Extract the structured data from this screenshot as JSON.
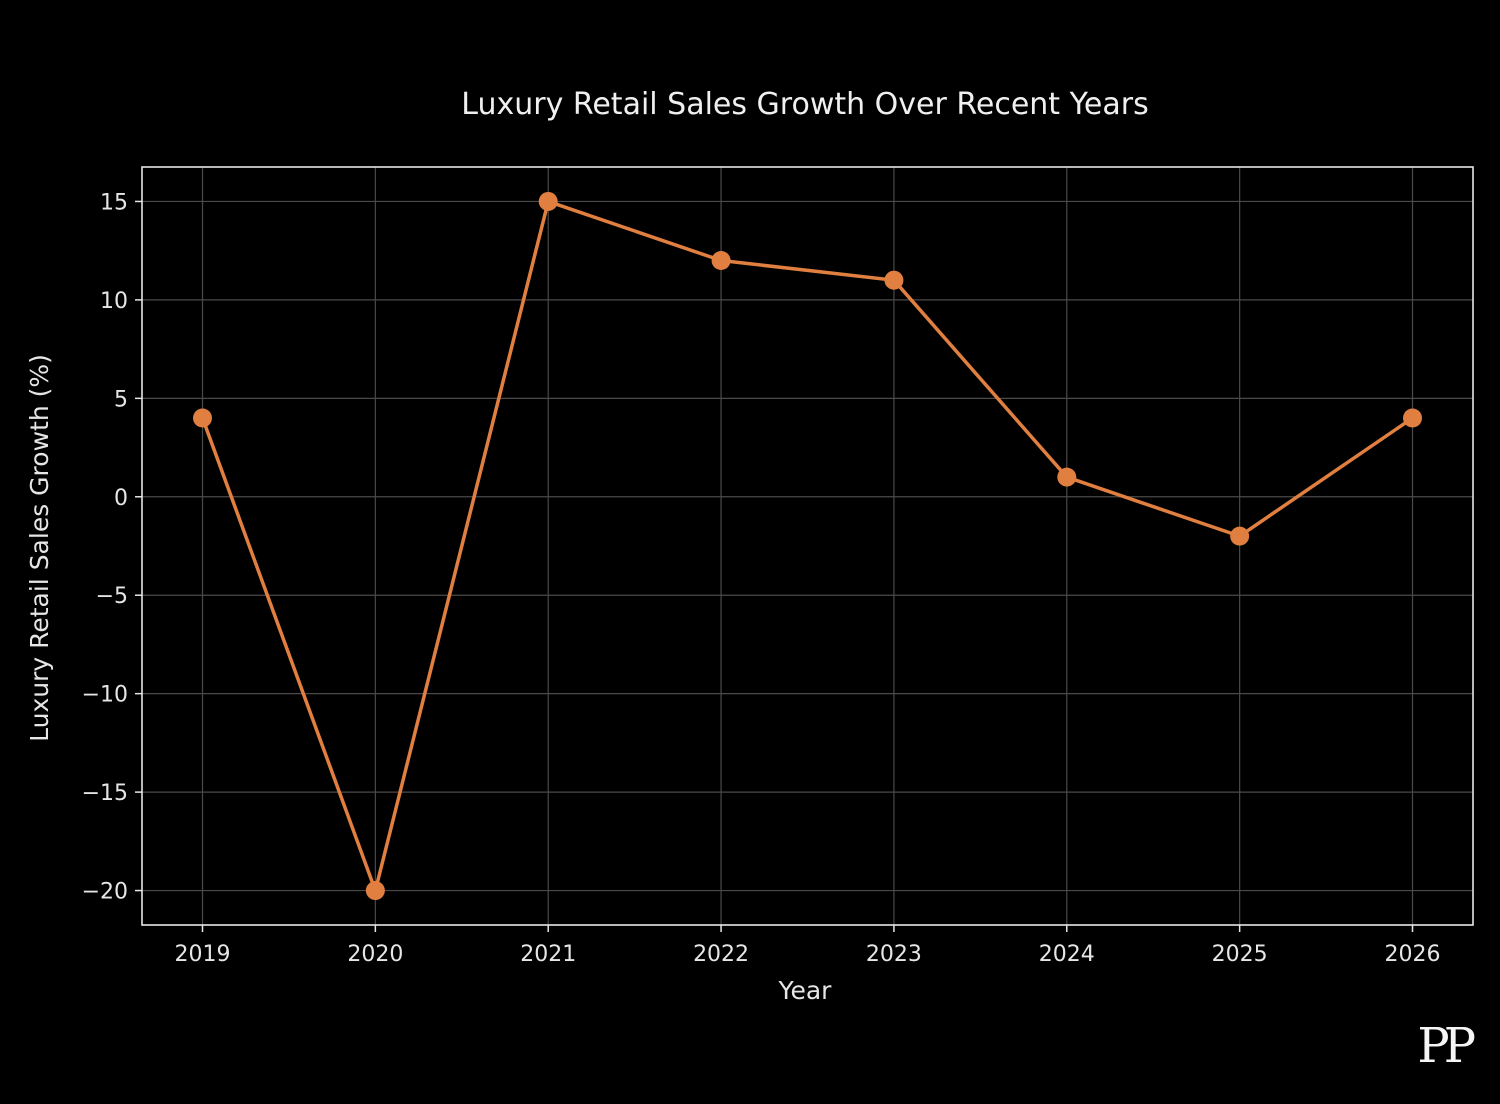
{
  "chart_data": {
    "type": "line",
    "title": "Luxury Retail Sales Growth Over Recent Years",
    "xlabel": "Year",
    "ylabel": "Luxury Retail Sales Growth (%)",
    "x": [
      2019,
      2020,
      2021,
      2022,
      2023,
      2024,
      2025,
      2026
    ],
    "x_tick_labels": [
      "2019",
      "2020",
      "2021",
      "2022",
      "2023",
      "2024",
      "2025",
      "2026"
    ],
    "series": [
      {
        "name": "Luxury Retail Sales Growth",
        "values": [
          4,
          -20,
          15,
          12,
          11,
          1,
          -2,
          4
        ]
      }
    ],
    "y_ticks": [
      15,
      10,
      5,
      0,
      -5,
      -10,
      -15,
      -20
    ],
    "y_tick_labels": [
      "15",
      "10",
      "5",
      "0",
      "−5",
      "−10",
      "−15",
      "−20"
    ],
    "ylim": [
      -21.75,
      16.75
    ],
    "xlim": [
      2018.65,
      2026.35
    ],
    "grid": true,
    "colors": {
      "line": "#e07f3f",
      "background": "#000000",
      "grid": "#4a4a4a",
      "axes": "#e6e6e6"
    }
  },
  "watermark": {
    "text": "PP"
  }
}
